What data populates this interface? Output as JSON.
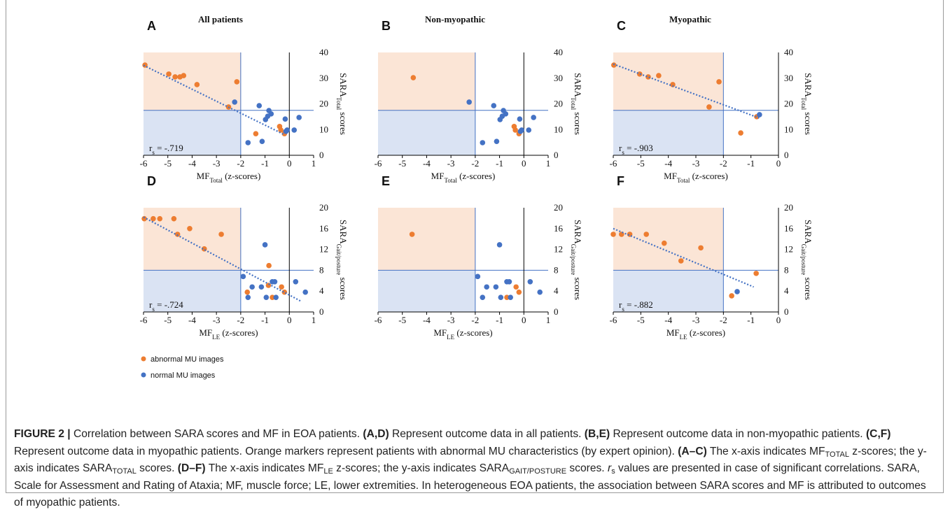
{
  "chart_data": [
    {
      "type": "scatter",
      "panel": "A",
      "title": "All patients",
      "xlabel": {
        "main": "MF",
        "sub": "Total",
        "rest": " (z-scores)"
      },
      "ylabel": {
        "main": "SARA",
        "sub": "Total",
        "rest": " scores"
      },
      "annotation": {
        "main": "r",
        "sub": "s",
        "rest": " = -.719"
      },
      "xlim": [
        -6,
        1
      ],
      "xticks": [
        -6,
        -5,
        -4,
        -3,
        -2,
        -1,
        0,
        1
      ],
      "ylim": [
        0,
        40
      ],
      "yticks": [
        0,
        10,
        20,
        30,
        40
      ],
      "x_cutoff": -2,
      "y_cutoff": 17.5,
      "trend": {
        "x": [
          -6,
          -0.2
        ],
        "y": [
          35,
          8
        ]
      },
      "series": [
        {
          "x": [
            -5.94,
            -4.96,
            -4.7,
            -4.5,
            -4.35,
            -3.8,
            -2.16,
            -2.5,
            -1.38,
            -0.4,
            -0.35,
            -0.2
          ],
          "y": [
            35.1,
            31.6,
            30.5,
            30.5,
            31,
            27.5,
            28.6,
            18.8,
            8.4,
            11.2,
            9.8,
            8.4
          ]
        },
        {
          "x": [
            -2.25,
            -1.24,
            -0.84,
            -0.75,
            -0.89,
            -0.98,
            -1.7,
            -1.12,
            -0.17,
            -0.09,
            -0.14,
            0.2,
            0.4
          ],
          "y": [
            20.7,
            19.3,
            17.4,
            16.1,
            15.2,
            13.9,
            4.9,
            5.4,
            14.1,
            9.8,
            9.3,
            9.8,
            14.7
          ]
        }
      ]
    },
    {
      "type": "scatter",
      "panel": "B",
      "title": "Non-myopathic",
      "xlabel": {
        "main": "MF",
        "sub": "Total",
        "rest": " (z-scores)"
      },
      "ylabel": {
        "main": "SARA",
        "sub": "Total",
        "rest": " scores"
      },
      "xlim": [
        -6,
        1
      ],
      "xticks": [
        -6,
        -5,
        -4,
        -3,
        -2,
        -1,
        0,
        1
      ],
      "ylim": [
        0,
        40
      ],
      "yticks": [
        0,
        10,
        20,
        30,
        40
      ],
      "x_cutoff": -2,
      "y_cutoff": 17.5,
      "series": [
        {
          "x": [
            -4.55,
            -0.4,
            -0.35,
            -0.2
          ],
          "y": [
            30.2,
            11.2,
            9.8,
            8.4
          ]
        },
        {
          "x": [
            -2.25,
            -1.24,
            -0.84,
            -0.75,
            -0.89,
            -0.98,
            -1.7,
            -1.12,
            -0.17,
            -0.09,
            -0.14,
            0.2,
            0.4
          ],
          "y": [
            20.7,
            19.3,
            17.4,
            16.1,
            15.2,
            13.9,
            4.9,
            5.4,
            14.1,
            9.8,
            9.3,
            9.8,
            14.7
          ]
        }
      ]
    },
    {
      "type": "scatter",
      "panel": "C",
      "title": "Myopathic",
      "xlabel": {
        "main": "MF",
        "sub": "Total",
        "rest": " (z-scores)"
      },
      "ylabel": {
        "main": "SARA",
        "sub": "Total",
        "rest": " scores"
      },
      "annotation": {
        "main": "r",
        "sub": "s",
        "rest": " = -.903"
      },
      "xlim": [
        -6,
        0
      ],
      "xticks": [
        -6,
        -5,
        -4,
        -3,
        -2,
        -1,
        0
      ],
      "ylim": [
        0,
        40
      ],
      "yticks": [
        0,
        10,
        20,
        30,
        40
      ],
      "x_cutoff": -2,
      "y_cutoff": 17.5,
      "trend": {
        "x": [
          -6,
          -0.7
        ],
        "y": [
          35.5,
          14.5
        ]
      },
      "series": [
        {
          "x": [
            -5.98,
            -5.04,
            -4.73,
            -4.35,
            -3.84,
            -2.16,
            -2.52,
            -1.37,
            -0.79
          ],
          "y": [
            35.1,
            31.6,
            30.5,
            31,
            27.5,
            28.6,
            18.8,
            8.7,
            15
          ]
        },
        {
          "x": [
            -0.69
          ],
          "y": [
            15.8
          ]
        }
      ]
    },
    {
      "type": "scatter",
      "panel": "D",
      "xlabel": {
        "main": "MF",
        "sub": "LE",
        "rest": " (z-scores)"
      },
      "ylabel": {
        "main": "SARA",
        "sub": "Gait/posture",
        "rest": " scores"
      },
      "annotation": {
        "main": "r",
        "sub": "s",
        "rest": " = -.724"
      },
      "xlim": [
        -6,
        1
      ],
      "xticks": [
        -6,
        -5,
        -4,
        -3,
        -2,
        -1,
        0,
        1
      ],
      "ylim": [
        0,
        20
      ],
      "yticks": [
        0,
        4,
        8,
        12,
        16,
        20
      ],
      "x_cutoff": -2,
      "y_cutoff": 8,
      "trend": {
        "x": [
          -6,
          0.5
        ],
        "y": [
          18.2,
          2
        ]
      },
      "series": [
        {
          "x": [
            -5.97,
            -5.6,
            -5.33,
            -4.75,
            -4.6,
            -4.1,
            -3.5,
            -2.8,
            -1.73,
            -0.86,
            -0.84,
            -0.7,
            -0.32,
            -0.2
          ],
          "y": [
            17.9,
            17.9,
            17.9,
            17.9,
            14.9,
            16,
            12.1,
            14.9,
            3.8,
            5.1,
            8.9,
            2.8,
            4.8,
            3.8
          ]
        },
        {
          "x": [
            -1.9,
            -1.7,
            -1.53,
            -1.15,
            -1,
            -0.95,
            -0.7,
            -0.6,
            -0.55,
            0.26,
            0.66
          ],
          "y": [
            6.8,
            2.8,
            4.8,
            4.8,
            12.9,
            2.8,
            5.8,
            5.8,
            2.8,
            5.8,
            3.8
          ]
        }
      ]
    },
    {
      "type": "scatter",
      "panel": "E",
      "xlabel": {
        "main": "MF",
        "sub": "LE",
        "rest": " (z-scores)"
      },
      "ylabel": {
        "main": "SARA",
        "sub": "Gait/posture",
        "rest": " scores"
      },
      "xlim": [
        -6,
        1
      ],
      "xticks": [
        -6,
        -5,
        -4,
        -3,
        -2,
        -1,
        0,
        1
      ],
      "ylim": [
        0,
        20
      ],
      "yticks": [
        0,
        4,
        8,
        12,
        16,
        20
      ],
      "x_cutoff": -2,
      "y_cutoff": 8,
      "series": [
        {
          "x": [
            -4.6,
            -0.32,
            -0.2,
            -0.7
          ],
          "y": [
            14.9,
            4.8,
            3.8,
            2.8
          ]
        },
        {
          "x": [
            -1.9,
            -1.7,
            -1.53,
            -1.15,
            -1,
            -0.95,
            -0.7,
            -0.6,
            -0.55,
            0.26,
            0.66
          ],
          "y": [
            6.8,
            2.8,
            4.8,
            4.8,
            12.9,
            2.8,
            5.8,
            5.8,
            2.8,
            5.8,
            3.8
          ]
        }
      ]
    },
    {
      "type": "scatter",
      "panel": "F",
      "xlabel": {
        "main": "MF",
        "sub": "LE",
        "rest": " (z-scores)"
      },
      "ylabel": {
        "main": "SARA",
        "sub": "Gait/posture",
        "rest": " scores"
      },
      "annotation": {
        "main": "r",
        "sub": "s",
        "rest": " = -.882"
      },
      "xlim": [
        -6,
        0
      ],
      "xticks": [
        -6,
        -5,
        -4,
        -3,
        -2,
        -1,
        0
      ],
      "ylim": [
        0,
        20
      ],
      "yticks": [
        0,
        4,
        8,
        12,
        16,
        20
      ],
      "x_cutoff": -2,
      "y_cutoff": 8,
      "trend": {
        "x": [
          -6,
          -0.9
        ],
        "y": [
          16,
          4.8
        ]
      },
      "series": [
        {
          "x": [
            -6,
            -5.7,
            -5.4,
            -4.8,
            -4.15,
            -3.54,
            -2.82,
            -1.7,
            -0.81
          ],
          "y": [
            14.9,
            14.9,
            14.9,
            14.9,
            13.2,
            9.8,
            12.3,
            3.1,
            7.4
          ]
        },
        {
          "x": [
            -1.5
          ],
          "y": [
            3.9
          ]
        }
      ]
    }
  ],
  "legend": [
    {
      "name": "abnormal MU images",
      "color": "#ed7d31"
    },
    {
      "name": "normal MU images",
      "color": "#4472c4"
    }
  ],
  "caption": [
    {
      "text": "FIGURE 2 |",
      "style": "b"
    },
    {
      "text": " Correlation between SARA scores and MF in EOA patients. ",
      "style": "n"
    },
    {
      "text": "(A,D)",
      "style": "b"
    },
    {
      "text": " Represent outcome data in all patients. ",
      "style": "n"
    },
    {
      "text": "(B,E)",
      "style": "b"
    },
    {
      "text": " Represent outcome data in non-myopathic patients. ",
      "style": "n"
    },
    {
      "text": "(C,F)",
      "style": "b"
    },
    {
      "text": " Represent outcome data in myopathic patients. Orange markers represent patients with abnormal MU characteristics (by expert opinion). ",
      "style": "n"
    },
    {
      "text": "(A–C)",
      "style": "b"
    },
    {
      "text": " The x-axis indicates MF",
      "style": "n"
    },
    {
      "text": "TOTAL",
      "style": "sub"
    },
    {
      "text": " z-scores; the y-axis indicates SARA",
      "style": "n"
    },
    {
      "text": "TOTAL",
      "style": "sub"
    },
    {
      "text": " scores. ",
      "style": "n"
    },
    {
      "text": "(D–F)",
      "style": "b"
    },
    {
      "text": " The x-axis indicates MF",
      "style": "n"
    },
    {
      "text": "LE",
      "style": "sub"
    },
    {
      "text": " z-scores; the y-axis indicates SARA",
      "style": "n"
    },
    {
      "text": "GAIT/POSTURE",
      "style": "sub"
    },
    {
      "text": " scores. ",
      "style": "n"
    },
    {
      "text": "r",
      "style": "i"
    },
    {
      "text": "s",
      "style": "sub"
    },
    {
      "text": " values are presented in case of significant correlations. SARA, Scale for Assessment and Rating of Ataxia; MF, muscle force; LE, lower extremities. In heterogeneous EOA patients, the association between SARA scores and MF is attributed to outcomes of myopathic patients.",
      "style": "n"
    }
  ]
}
